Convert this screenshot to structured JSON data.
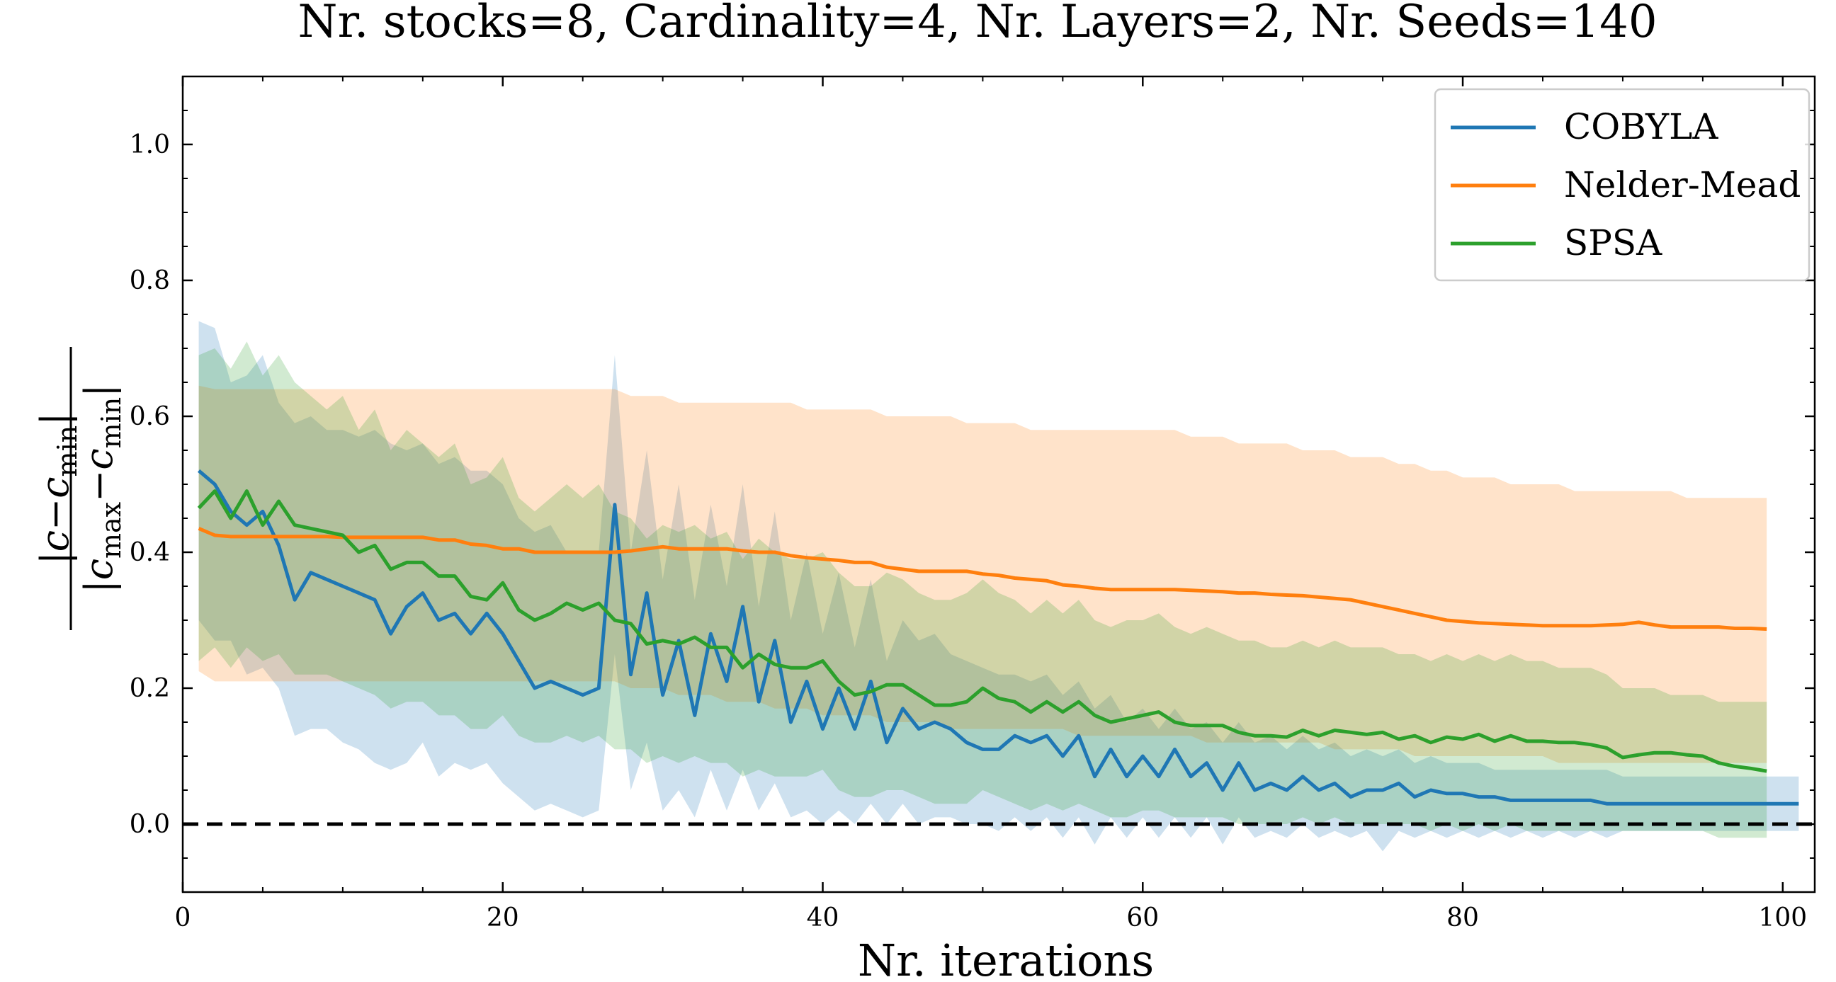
{
  "chart_data": {
    "type": "line",
    "title": "Nr. stocks=8, Cardinality=4, Nr. Layers=2, Nr. Seeds=140",
    "xlabel": "Nr. iterations",
    "ylabel": "|c−c_min| / |c_max−c_min|",
    "xlim": [
      0,
      102
    ],
    "ylim": [
      -0.1,
      1.1
    ],
    "xticks": [
      0,
      20,
      40,
      60,
      80,
      100
    ],
    "yticks": [
      0.0,
      0.2,
      0.4,
      0.6,
      0.8,
      1.0
    ],
    "xtick_labels": [
      "0",
      "20",
      "40",
      "60",
      "80",
      "100"
    ],
    "ytick_labels": [
      "0.0",
      "0.2",
      "0.4",
      "0.6",
      "0.8",
      "1.0"
    ],
    "grid": false,
    "legend_position": "top-right",
    "reference_line": {
      "y": 0.0,
      "style": "dashed",
      "color": "#000000"
    },
    "series": [
      {
        "name": "COBYLA",
        "color": "#1f77b4",
        "x_start": 1,
        "values": [
          0.52,
          0.5,
          0.46,
          0.44,
          0.46,
          0.41,
          0.33,
          0.37,
          0.36,
          0.35,
          0.34,
          0.33,
          0.28,
          0.32,
          0.34,
          0.3,
          0.31,
          0.28,
          0.31,
          0.28,
          0.24,
          0.2,
          0.21,
          0.2,
          0.19,
          0.2,
          0.47,
          0.22,
          0.34,
          0.19,
          0.27,
          0.16,
          0.28,
          0.21,
          0.32,
          0.18,
          0.27,
          0.15,
          0.21,
          0.14,
          0.2,
          0.14,
          0.21,
          0.12,
          0.17,
          0.14,
          0.15,
          0.14,
          0.12,
          0.11,
          0.11,
          0.13,
          0.12,
          0.13,
          0.1,
          0.13,
          0.07,
          0.11,
          0.07,
          0.1,
          0.07,
          0.11,
          0.07,
          0.09,
          0.05,
          0.09,
          0.05,
          0.06,
          0.05,
          0.07,
          0.05,
          0.06,
          0.04,
          0.05,
          0.05,
          0.06,
          0.04,
          0.05,
          0.045,
          0.045,
          0.04,
          0.04,
          0.035,
          0.035,
          0.035,
          0.035,
          0.035,
          0.035,
          0.03,
          0.03,
          0.03,
          0.03,
          0.03,
          0.03,
          0.03,
          0.03,
          0.03,
          0.03,
          0.03,
          0.03,
          0.03
        ],
        "band_upper": [
          0.74,
          0.73,
          0.65,
          0.66,
          0.69,
          0.62,
          0.59,
          0.6,
          0.58,
          0.58,
          0.57,
          0.58,
          0.56,
          0.55,
          0.56,
          0.53,
          0.54,
          0.52,
          0.52,
          0.5,
          0.45,
          0.43,
          0.44,
          0.4,
          0.4,
          0.4,
          0.69,
          0.4,
          0.55,
          0.36,
          0.5,
          0.33,
          0.47,
          0.35,
          0.5,
          0.32,
          0.46,
          0.3,
          0.4,
          0.28,
          0.37,
          0.26,
          0.36,
          0.24,
          0.3,
          0.27,
          0.28,
          0.25,
          0.24,
          0.23,
          0.22,
          0.22,
          0.21,
          0.22,
          0.19,
          0.21,
          0.17,
          0.19,
          0.15,
          0.17,
          0.14,
          0.17,
          0.14,
          0.15,
          0.12,
          0.15,
          0.12,
          0.13,
          0.11,
          0.13,
          0.11,
          0.12,
          0.1,
          0.11,
          0.1,
          0.11,
          0.09,
          0.1,
          0.09,
          0.09,
          0.09,
          0.08,
          0.08,
          0.08,
          0.08,
          0.08,
          0.08,
          0.08,
          0.08,
          0.07,
          0.07,
          0.07,
          0.07,
          0.07,
          0.07,
          0.07,
          0.07,
          0.07,
          0.07,
          0.07,
          0.07
        ],
        "band_lower": [
          0.3,
          0.27,
          0.27,
          0.22,
          0.23,
          0.2,
          0.13,
          0.14,
          0.14,
          0.12,
          0.11,
          0.09,
          0.08,
          0.09,
          0.12,
          0.07,
          0.09,
          0.08,
          0.09,
          0.06,
          0.04,
          0.02,
          0.03,
          0.02,
          0.01,
          0.02,
          0.25,
          0.05,
          0.12,
          0.02,
          0.05,
          0.01,
          0.08,
          0.02,
          0.08,
          0.02,
          0.06,
          0.01,
          0.02,
          0.0,
          0.02,
          0.0,
          0.03,
          0.0,
          0.03,
          0.0,
          0.01,
          0.01,
          0.0,
          0.0,
          -0.01,
          0.01,
          -0.01,
          0.01,
          -0.02,
          0.01,
          -0.03,
          0.01,
          -0.02,
          0.01,
          -0.02,
          0.01,
          -0.02,
          0.01,
          -0.03,
          0.01,
          -0.02,
          -0.01,
          -0.02,
          0.0,
          -0.02,
          -0.01,
          -0.02,
          -0.01,
          -0.04,
          -0.01,
          -0.02,
          -0.01,
          -0.02,
          -0.01,
          -0.02,
          -0.01,
          -0.02,
          -0.01,
          -0.02,
          -0.01,
          -0.02,
          -0.01,
          -0.02,
          -0.01,
          -0.01,
          -0.01,
          -0.01,
          -0.01,
          -0.01,
          -0.01,
          -0.01,
          -0.01,
          -0.01,
          -0.01,
          -0.01
        ]
      },
      {
        "name": "Nelder-Mead",
        "color": "#ff7f0e",
        "x_start": 1,
        "values": [
          0.435,
          0.425,
          0.423,
          0.423,
          0.423,
          0.423,
          0.423,
          0.423,
          0.423,
          0.422,
          0.422,
          0.422,
          0.422,
          0.422,
          0.422,
          0.418,
          0.418,
          0.412,
          0.41,
          0.405,
          0.405,
          0.4,
          0.4,
          0.4,
          0.4,
          0.4,
          0.4,
          0.402,
          0.405,
          0.408,
          0.405,
          0.405,
          0.405,
          0.405,
          0.402,
          0.4,
          0.4,
          0.395,
          0.392,
          0.39,
          0.388,
          0.385,
          0.385,
          0.378,
          0.375,
          0.372,
          0.372,
          0.372,
          0.372,
          0.368,
          0.366,
          0.362,
          0.36,
          0.358,
          0.352,
          0.35,
          0.347,
          0.345,
          0.345,
          0.345,
          0.345,
          0.345,
          0.344,
          0.343,
          0.342,
          0.34,
          0.34,
          0.338,
          0.337,
          0.336,
          0.334,
          0.332,
          0.33,
          0.325,
          0.32,
          0.315,
          0.31,
          0.305,
          0.3,
          0.298,
          0.296,
          0.295,
          0.294,
          0.293,
          0.292,
          0.292,
          0.292,
          0.292,
          0.293,
          0.294,
          0.297,
          0.293,
          0.29,
          0.29,
          0.29,
          0.29,
          0.288,
          0.288,
          0.287
        ],
        "band_upper": [
          0.645,
          0.64,
          0.64,
          0.64,
          0.64,
          0.64,
          0.64,
          0.64,
          0.64,
          0.64,
          0.64,
          0.64,
          0.64,
          0.64,
          0.64,
          0.64,
          0.64,
          0.64,
          0.64,
          0.64,
          0.64,
          0.64,
          0.64,
          0.64,
          0.64,
          0.64,
          0.64,
          0.63,
          0.63,
          0.63,
          0.62,
          0.62,
          0.62,
          0.62,
          0.62,
          0.62,
          0.62,
          0.62,
          0.61,
          0.61,
          0.61,
          0.61,
          0.61,
          0.6,
          0.6,
          0.6,
          0.6,
          0.6,
          0.59,
          0.59,
          0.59,
          0.59,
          0.58,
          0.58,
          0.58,
          0.58,
          0.58,
          0.58,
          0.58,
          0.58,
          0.58,
          0.58,
          0.57,
          0.57,
          0.57,
          0.56,
          0.56,
          0.56,
          0.56,
          0.55,
          0.55,
          0.55,
          0.54,
          0.54,
          0.54,
          0.53,
          0.53,
          0.52,
          0.52,
          0.51,
          0.51,
          0.51,
          0.5,
          0.5,
          0.5,
          0.5,
          0.49,
          0.49,
          0.49,
          0.49,
          0.49,
          0.49,
          0.49,
          0.48,
          0.48,
          0.48,
          0.48,
          0.48,
          0.48
        ],
        "band_lower": [
          0.225,
          0.21,
          0.21,
          0.21,
          0.21,
          0.21,
          0.21,
          0.21,
          0.21,
          0.21,
          0.21,
          0.21,
          0.21,
          0.21,
          0.21,
          0.21,
          0.21,
          0.21,
          0.21,
          0.21,
          0.21,
          0.21,
          0.21,
          0.21,
          0.21,
          0.21,
          0.21,
          0.2,
          0.2,
          0.2,
          0.19,
          0.19,
          0.19,
          0.18,
          0.18,
          0.18,
          0.17,
          0.17,
          0.17,
          0.16,
          0.16,
          0.16,
          0.16,
          0.15,
          0.15,
          0.15,
          0.15,
          0.14,
          0.14,
          0.14,
          0.14,
          0.14,
          0.14,
          0.14,
          0.14,
          0.13,
          0.13,
          0.13,
          0.13,
          0.13,
          0.13,
          0.13,
          0.13,
          0.12,
          0.12,
          0.12,
          0.12,
          0.12,
          0.12,
          0.12,
          0.12,
          0.11,
          0.11,
          0.11,
          0.11,
          0.11,
          0.1,
          0.1,
          0.1,
          0.1,
          0.1,
          0.1,
          0.1,
          0.1,
          0.1,
          0.09,
          0.09,
          0.09,
          0.09,
          0.09,
          0.09,
          0.09,
          0.09,
          0.09,
          0.09,
          0.09,
          0.09,
          0.09,
          0.09
        ]
      },
      {
        "name": "SPSA",
        "color": "#2ca02c",
        "x_start": 1,
        "values": [
          0.465,
          0.49,
          0.45,
          0.49,
          0.44,
          0.475,
          0.44,
          0.435,
          0.43,
          0.425,
          0.4,
          0.41,
          0.375,
          0.385,
          0.385,
          0.365,
          0.365,
          0.335,
          0.33,
          0.355,
          0.315,
          0.3,
          0.31,
          0.325,
          0.315,
          0.325,
          0.3,
          0.295,
          0.265,
          0.27,
          0.265,
          0.275,
          0.26,
          0.26,
          0.23,
          0.25,
          0.235,
          0.23,
          0.23,
          0.24,
          0.21,
          0.19,
          0.195,
          0.205,
          0.205,
          0.19,
          0.175,
          0.175,
          0.18,
          0.2,
          0.185,
          0.18,
          0.165,
          0.18,
          0.165,
          0.18,
          0.16,
          0.15,
          0.155,
          0.16,
          0.165,
          0.15,
          0.145,
          0.145,
          0.145,
          0.135,
          0.13,
          0.13,
          0.128,
          0.138,
          0.13,
          0.138,
          0.135,
          0.132,
          0.135,
          0.125,
          0.13,
          0.12,
          0.128,
          0.125,
          0.132,
          0.122,
          0.13,
          0.122,
          0.122,
          0.12,
          0.12,
          0.117,
          0.112,
          0.098,
          0.102,
          0.105,
          0.105,
          0.102,
          0.1,
          0.09,
          0.085,
          0.082,
          0.078
        ],
        "band_upper": [
          0.69,
          0.7,
          0.67,
          0.71,
          0.66,
          0.69,
          0.65,
          0.63,
          0.61,
          0.63,
          0.58,
          0.61,
          0.55,
          0.58,
          0.56,
          0.54,
          0.56,
          0.5,
          0.51,
          0.54,
          0.48,
          0.46,
          0.48,
          0.5,
          0.48,
          0.5,
          0.46,
          0.45,
          0.42,
          0.44,
          0.43,
          0.44,
          0.42,
          0.43,
          0.39,
          0.42,
          0.4,
          0.39,
          0.39,
          0.4,
          0.37,
          0.35,
          0.35,
          0.37,
          0.36,
          0.34,
          0.33,
          0.33,
          0.34,
          0.36,
          0.34,
          0.33,
          0.31,
          0.33,
          0.31,
          0.33,
          0.3,
          0.29,
          0.3,
          0.3,
          0.31,
          0.29,
          0.28,
          0.29,
          0.28,
          0.27,
          0.27,
          0.26,
          0.26,
          0.27,
          0.26,
          0.27,
          0.26,
          0.26,
          0.26,
          0.25,
          0.25,
          0.24,
          0.25,
          0.24,
          0.25,
          0.24,
          0.25,
          0.24,
          0.24,
          0.23,
          0.23,
          0.23,
          0.22,
          0.2,
          0.2,
          0.2,
          0.19,
          0.19,
          0.19,
          0.18,
          0.18,
          0.18,
          0.18
        ],
        "band_lower": [
          0.24,
          0.26,
          0.23,
          0.26,
          0.24,
          0.25,
          0.22,
          0.22,
          0.22,
          0.21,
          0.2,
          0.19,
          0.17,
          0.18,
          0.18,
          0.16,
          0.16,
          0.14,
          0.14,
          0.16,
          0.13,
          0.12,
          0.12,
          0.13,
          0.12,
          0.13,
          0.11,
          0.11,
          0.09,
          0.1,
          0.09,
          0.1,
          0.09,
          0.09,
          0.07,
          0.08,
          0.07,
          0.07,
          0.07,
          0.08,
          0.05,
          0.04,
          0.04,
          0.05,
          0.05,
          0.04,
          0.03,
          0.03,
          0.03,
          0.05,
          0.04,
          0.03,
          0.02,
          0.03,
          0.02,
          0.03,
          0.02,
          0.01,
          0.01,
          0.02,
          0.02,
          0.01,
          0.01,
          0.01,
          0.01,
          0.0,
          0.0,
          0.0,
          0.0,
          0.01,
          0.0,
          0.01,
          0.0,
          0.0,
          0.0,
          0.0,
          0.0,
          -0.01,
          0.0,
          -0.01,
          0.0,
          -0.01,
          0.0,
          -0.01,
          -0.01,
          -0.01,
          -0.01,
          -0.01,
          -0.01,
          -0.01,
          -0.01,
          -0.01,
          -0.01,
          -0.01,
          -0.01,
          -0.02,
          -0.02,
          -0.02,
          -0.02
        ]
      }
    ]
  }
}
